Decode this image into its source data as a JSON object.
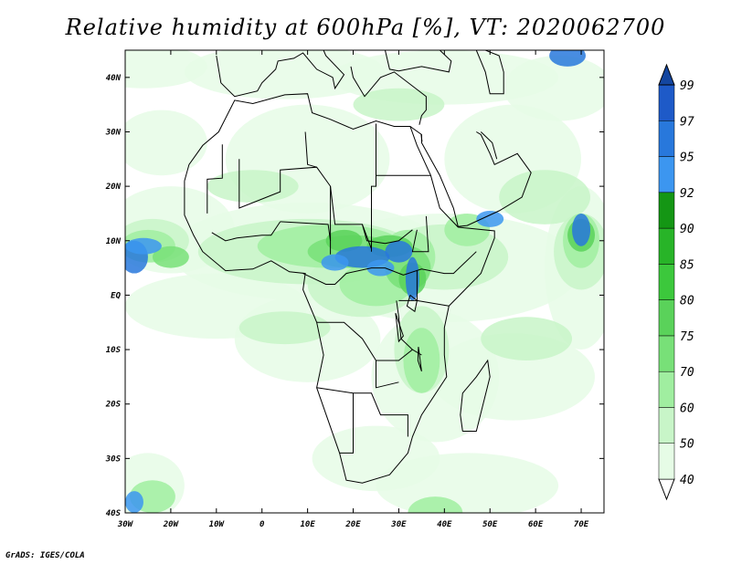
{
  "title": "Relative humidity at 600hPa [%], VT: 2020062700",
  "footer": "GrADS: IGES/COLA",
  "map": {
    "projection": "latlon",
    "lon_range": [
      -30,
      75
    ],
    "lat_range": [
      -40,
      45
    ],
    "x_ticks": [
      "30W",
      "20W",
      "10W",
      "0",
      "10E",
      "20E",
      "30E",
      "40E",
      "50E",
      "60E",
      "70E"
    ],
    "x_tick_values": [
      -30,
      -20,
      -10,
      0,
      10,
      20,
      30,
      40,
      50,
      60,
      70
    ],
    "y_ticks": [
      "40S",
      "30S",
      "20S",
      "10S",
      "EQ",
      "10N",
      "20N",
      "30N",
      "40N"
    ],
    "y_tick_values": [
      -40,
      -30,
      -20,
      -10,
      0,
      10,
      20,
      30,
      40
    ],
    "field": "relative humidity 600hPa",
    "units": "%"
  },
  "colorbar": {
    "levels": [
      "40",
      "50",
      "60",
      "70",
      "75",
      "80",
      "85",
      "90",
      "92",
      "95",
      "97",
      "99"
    ],
    "colors": [
      "#ffffff",
      "#e6fce6",
      "#c8f5c8",
      "#a0eea0",
      "#78e078",
      "#5ad25a",
      "#3cc83c",
      "#28b428",
      "#149614",
      "#3c96f0",
      "#2878dc",
      "#1e5ac8",
      "#1446a0"
    ]
  },
  "colors": {
    "coastline": "#000000",
    "background": "#ffffff"
  }
}
